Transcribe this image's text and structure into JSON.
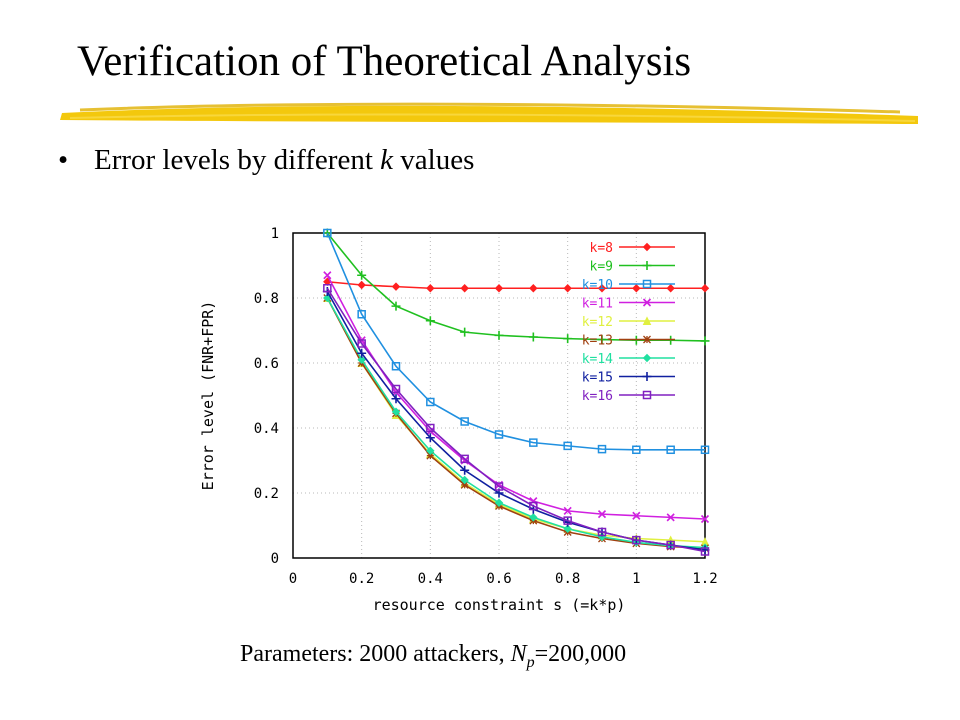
{
  "slide": {
    "title": "Verification of Theoretical Analysis",
    "bullet_prefix": "Error levels by different ",
    "bullet_var": "k",
    "bullet_suffix": " values",
    "caption_prefix": "Parameters: 2000 attackers, ",
    "caption_var": "N",
    "caption_sub": "p",
    "caption_suffix": "=200,000",
    "accent_color": "#f2c500"
  },
  "chart_data": {
    "type": "line",
    "title": "",
    "xlabel": "resource constraint s (=k*p)",
    "ylabel": "Error level (FNR+FPR)",
    "xlim": [
      0,
      1.2
    ],
    "ylim": [
      0,
      1
    ],
    "xticks": [
      "0",
      "0.2",
      "0.4",
      "0.6",
      "0.8",
      "1",
      "1.2"
    ],
    "yticks": [
      "0",
      "0.2",
      "0.4",
      "0.6",
      "0.8",
      "1"
    ],
    "grid": true,
    "legend": "top-right",
    "x": [
      0.1,
      0.2,
      0.3,
      0.4,
      0.5,
      0.6,
      0.7,
      0.8,
      0.9,
      1.0,
      1.1,
      1.2
    ],
    "series": [
      {
        "name": "k=8",
        "color": "#ff2020",
        "marker": "diamond",
        "values": [
          0.85,
          0.84,
          0.835,
          0.83,
          0.83,
          0.83,
          0.83,
          0.83,
          0.83,
          0.83,
          0.83,
          0.83
        ]
      },
      {
        "name": "k=9",
        "color": "#20c020",
        "marker": "plus",
        "values": [
          1.0,
          0.87,
          0.775,
          0.73,
          0.695,
          0.685,
          0.68,
          0.675,
          0.672,
          0.67,
          0.67,
          0.668
        ]
      },
      {
        "name": "k=10",
        "color": "#2090e0",
        "marker": "square",
        "values": [
          1.0,
          0.75,
          0.59,
          0.48,
          0.42,
          0.38,
          0.355,
          0.345,
          0.335,
          0.333,
          0.333,
          0.333
        ]
      },
      {
        "name": "k=11",
        "color": "#d020e0",
        "marker": "cross",
        "values": [
          0.87,
          0.67,
          0.51,
          0.39,
          0.3,
          0.225,
          0.175,
          0.145,
          0.135,
          0.13,
          0.125,
          0.12
        ]
      },
      {
        "name": "k=12",
        "color": "#e0f040",
        "marker": "triangle",
        "values": [
          0.8,
          0.6,
          0.44,
          0.32,
          0.23,
          0.165,
          0.12,
          0.09,
          0.07,
          0.06,
          0.055,
          0.05
        ]
      },
      {
        "name": "k=13",
        "color": "#a04010",
        "marker": "star",
        "values": [
          0.8,
          0.6,
          0.445,
          0.315,
          0.225,
          0.16,
          0.115,
          0.08,
          0.06,
          0.045,
          0.035,
          0.03
        ]
      },
      {
        "name": "k=14",
        "color": "#20e0a0",
        "marker": "diamond",
        "values": [
          0.8,
          0.61,
          0.45,
          0.33,
          0.24,
          0.17,
          0.125,
          0.09,
          0.065,
          0.048,
          0.038,
          0.032
        ]
      },
      {
        "name": "k=15",
        "color": "#1020a0",
        "marker": "plus",
        "values": [
          0.82,
          0.63,
          0.49,
          0.37,
          0.27,
          0.2,
          0.15,
          0.11,
          0.08,
          0.055,
          0.04,
          0.025
        ]
      },
      {
        "name": "k=16",
        "color": "#8020c0",
        "marker": "square",
        "values": [
          0.83,
          0.66,
          0.52,
          0.4,
          0.305,
          0.22,
          0.16,
          0.115,
          0.08,
          0.055,
          0.04,
          0.02
        ]
      }
    ]
  }
}
